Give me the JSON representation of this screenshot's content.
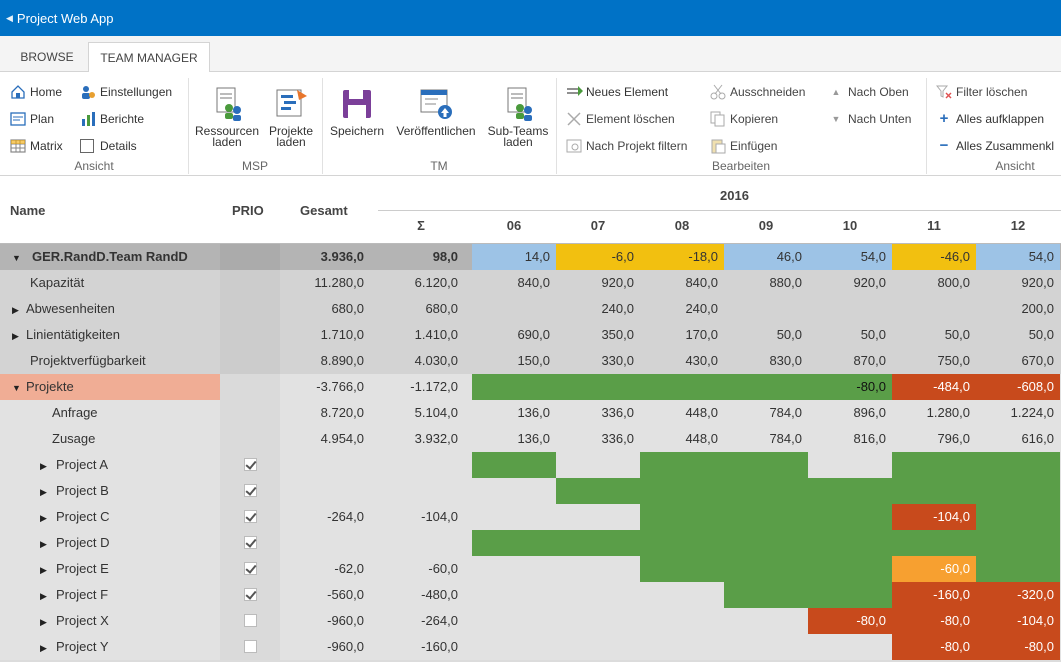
{
  "app_title": "Project Web App",
  "tabs": [
    {
      "label": "BROWSE"
    },
    {
      "label": "TEAM MANAGER"
    }
  ],
  "ribbon": {
    "ansicht1": {
      "home": "Home",
      "plan": "Plan",
      "matrix": "Matrix",
      "einstellungen": "Einstellungen",
      "berichte": "Berichte",
      "details": "Details",
      "group": "Ansicht"
    },
    "msp": {
      "ressourcen": [
        "Ressourcen",
        "laden"
      ],
      "projekte": [
        "Projekte",
        "laden"
      ],
      "group": "MSP"
    },
    "tm": {
      "speichern": "Speichern",
      "veroeffentlichen": "Veröffentlichen",
      "subteams": [
        "Sub-Teams",
        "laden"
      ],
      "group": "TM"
    },
    "bearbeiten": {
      "neues": "Neues Element",
      "loeschen": "Element löschen",
      "filtern": "Nach Projekt filtern",
      "ausschneiden": "Ausschneiden",
      "kopieren": "Kopieren",
      "einfuegen": "Einfügen",
      "oben": "Nach Oben",
      "unten": "Nach Unten",
      "group": "Bearbeiten"
    },
    "ansicht2": {
      "filter": "Filter löschen",
      "auf": "Alles aufklappen",
      "zu": "Alles Zusammenkl",
      "group": "Ansicht"
    }
  },
  "grid": {
    "headers": {
      "name": "Name",
      "prio": "PRIO",
      "gesamt": "Gesamt",
      "year": "2016",
      "sigma": "Σ",
      "months": [
        "06",
        "07",
        "08",
        "09",
        "10",
        "11",
        "12"
      ]
    },
    "rows": [
      {
        "name": "GER.RandD.Team RandD",
        "gesamt": "3.936,0",
        "sigma": "98,0",
        "m": [
          "14,0",
          "-6,0",
          "-18,0",
          "46,0",
          "54,0",
          "-46,0",
          "54,0"
        ]
      },
      {
        "name": "Kapazität",
        "gesamt": "11.280,0",
        "sigma": "6.120,0",
        "m": [
          "840,0",
          "920,0",
          "840,0",
          "880,0",
          "920,0",
          "800,0",
          "920,0"
        ]
      },
      {
        "name": "Abwesenheiten",
        "gesamt": "680,0",
        "sigma": "680,0",
        "m": [
          "",
          "240,0",
          "240,0",
          "",
          "",
          "",
          "200,0"
        ]
      },
      {
        "name": "Linientätigkeiten",
        "gesamt": "1.710,0",
        "sigma": "1.410,0",
        "m": [
          "690,0",
          "350,0",
          "170,0",
          "50,0",
          "50,0",
          "50,0",
          "50,0"
        ]
      },
      {
        "name": "Projektverfügbarkeit",
        "gesamt": "8.890,0",
        "sigma": "4.030,0",
        "m": [
          "150,0",
          "330,0",
          "430,0",
          "830,0",
          "870,0",
          "750,0",
          "670,0"
        ]
      },
      {
        "name": "Projekte",
        "gesamt": "-3.766,0",
        "sigma": "-1.172,0",
        "m": [
          "",
          "",
          "",
          "",
          "-80,0",
          "-484,0",
          "-608,0"
        ]
      },
      {
        "name": "Anfrage",
        "gesamt": "8.720,0",
        "sigma": "5.104,0",
        "m": [
          "136,0",
          "336,0",
          "448,0",
          "784,0",
          "896,0",
          "1.280,0",
          "1.224,0"
        ]
      },
      {
        "name": "Zusage",
        "gesamt": "4.954,0",
        "sigma": "3.932,0",
        "m": [
          "136,0",
          "336,0",
          "448,0",
          "784,0",
          "816,0",
          "796,0",
          "616,0"
        ]
      },
      {
        "name": "Project A",
        "prio": true,
        "gesamt": "",
        "sigma": "",
        "m": [
          "",
          "",
          "",
          "",
          "",
          "",
          ""
        ]
      },
      {
        "name": "Project B",
        "prio": true,
        "gesamt": "",
        "sigma": "",
        "m": [
          "",
          "",
          "",
          "",
          "",
          "",
          ""
        ]
      },
      {
        "name": "Project C",
        "prio": true,
        "gesamt": "-264,0",
        "sigma": "-104,0",
        "m": [
          "",
          "",
          "",
          "",
          "",
          "-104,0",
          ""
        ]
      },
      {
        "name": "Project D",
        "prio": true,
        "gesamt": "",
        "sigma": "",
        "m": [
          "",
          "",
          "",
          "",
          "",
          "",
          ""
        ]
      },
      {
        "name": "Project E",
        "prio": true,
        "gesamt": "-62,0",
        "sigma": "-60,0",
        "m": [
          "",
          "",
          "",
          "",
          "",
          "-60,0",
          ""
        ]
      },
      {
        "name": "Project F",
        "prio": true,
        "gesamt": "-560,0",
        "sigma": "-480,0",
        "m": [
          "",
          "",
          "",
          "",
          "",
          "-160,0",
          "-320,0"
        ]
      },
      {
        "name": "Project X",
        "prio": false,
        "gesamt": "-960,0",
        "sigma": "-264,0",
        "m": [
          "",
          "",
          "",
          "",
          "-80,0",
          "-80,0",
          "-104,0"
        ]
      },
      {
        "name": "Project Y",
        "prio": false,
        "gesamt": "-960,0",
        "sigma": "-160,0",
        "m": [
          "",
          "",
          "",
          "",
          "",
          "-80,0",
          "-80,0"
        ]
      }
    ]
  },
  "colors": {
    "blue": "#9dc3e6",
    "yellow": "#f2c010",
    "green": "#5a9e48",
    "red": "#c84a1c",
    "orange": "#f7a030",
    "salmon": "#f0ad95"
  }
}
